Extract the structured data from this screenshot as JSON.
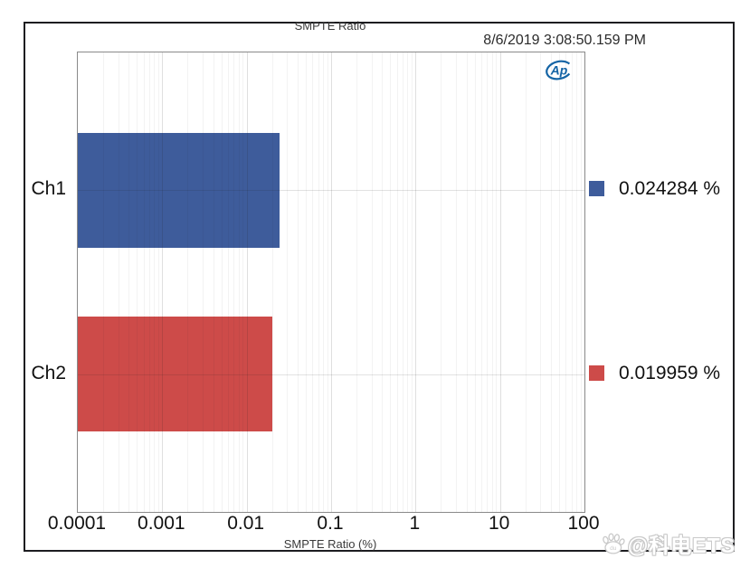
{
  "header": {
    "timestamp": "8/6/2019 3:08:50.159 PM"
  },
  "chart_data": {
    "type": "bar",
    "orientation": "horizontal",
    "title": "SMPTE Ratio",
    "xlabel": "SMPTE Ratio (%)",
    "x_scale": "log",
    "xlim": [
      0.0001,
      100
    ],
    "x_ticks": [
      0.0001,
      0.001,
      0.01,
      0.1,
      1,
      10,
      100
    ],
    "x_tick_labels": [
      "0.0001",
      "0.001",
      "0.01",
      "0.1",
      "1",
      "10",
      "100"
    ],
    "grid": true,
    "categories": [
      "Ch1",
      "Ch2"
    ],
    "values": [
      0.024284,
      0.019959
    ],
    "value_labels": [
      "0.024284 %",
      "0.019959 %"
    ],
    "bar_colors": [
      "#3e5c9b",
      "#cd4b49"
    ],
    "legend_position": "right"
  },
  "branding": {
    "logo_text": "Ap",
    "logo_color": "#1464a5",
    "watermark_text": "@科电ETS",
    "watermark_icon_text": "du"
  }
}
